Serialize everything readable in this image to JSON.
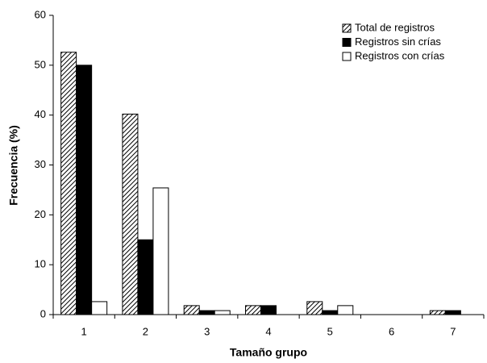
{
  "chart_data": {
    "type": "bar",
    "x_label": "Tamaño grupo",
    "y_label": "Frecuencia (%)",
    "categories": [
      "1",
      "2",
      "3",
      "4",
      "5",
      "6",
      "7"
    ],
    "series": [
      {
        "name": "Total de registros",
        "color": "#000000",
        "pattern": "hatch",
        "values": [
          52.6,
          40.2,
          1.8,
          1.8,
          2.6,
          0,
          0.8
        ]
      },
      {
        "name": "Registros sin crías",
        "color": "#000000",
        "values": [
          50,
          15,
          0.8,
          1.8,
          0.8,
          0,
          0.8
        ]
      },
      {
        "name": "Registros con crías",
        "color": "#ffffff",
        "values": [
          2.6,
          25.4,
          0.8,
          0,
          1.8,
          0,
          0
        ]
      }
    ],
    "ylim": [
      0,
      60
    ],
    "yticks": [
      0,
      10,
      20,
      30,
      40,
      50,
      60
    ],
    "grid": false,
    "legend": "top-right"
  }
}
